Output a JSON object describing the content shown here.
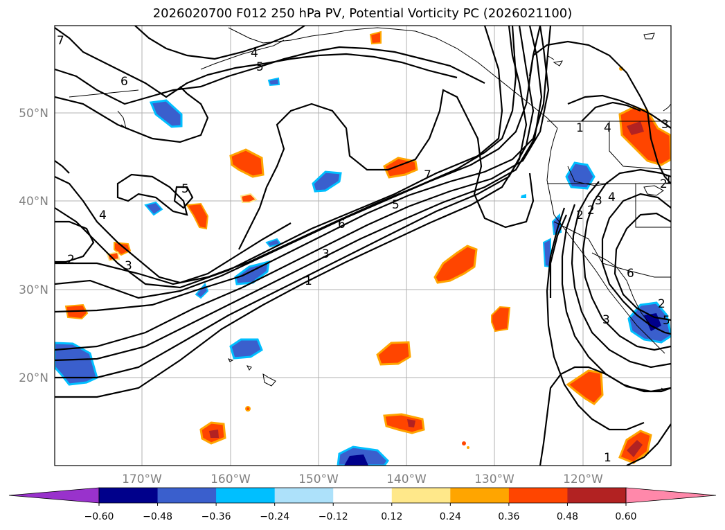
{
  "title": "2026020700 F012 250 hPa PV, Potential Vorticity PC (2026021100)",
  "map": {
    "lon_labels": [
      "170°W",
      "160°W",
      "150°W",
      "140°W",
      "130°W",
      "120°W"
    ],
    "lat_labels": [
      "20°N",
      "30°N",
      "40°N",
      "50°N"
    ],
    "gridlines": true
  },
  "contours": {
    "variable": "250 hPa PV",
    "color": "#000000",
    "labels": [
      "7",
      "6",
      "5",
      "4",
      "3",
      "2",
      "1",
      "5",
      "6",
      "7",
      "4",
      "3",
      "2",
      "5",
      "6",
      "3",
      "2",
      "1",
      "4",
      "3",
      "2",
      "1",
      "5",
      "4",
      "3",
      "2",
      "1"
    ]
  },
  "colorbar": {
    "extend": "both",
    "colors": [
      "#9932CC",
      "#00008B",
      "#3A5FCD",
      "#00BFFF",
      "#ADE1FA",
      "#FFFFFF",
      "#FFE88A",
      "#FFA500",
      "#FF4500",
      "#B22222",
      "#FF88AA"
    ],
    "tick_labels": [
      "−0.60",
      "−0.48",
      "−0.36",
      "−0.24",
      "−0.12",
      "0.12",
      "0.24",
      "0.36",
      "0.48",
      "0.60"
    ]
  }
}
